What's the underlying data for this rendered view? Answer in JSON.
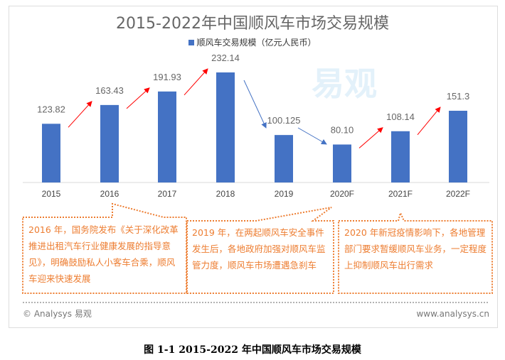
{
  "chart_data": {
    "type": "bar",
    "title": "2015-2022年中国顺风车市场交易规模",
    "legend": "顺风车交易规模（亿元人民币）",
    "categories": [
      "2015",
      "2016",
      "2017",
      "2018",
      "2019",
      "2020F",
      "2021F",
      "2022F"
    ],
    "values": [
      123.82,
      163.43,
      191.93,
      232.14,
      100.125,
      80.1,
      108.14,
      151.3
    ],
    "labels": [
      "123.82",
      "163.43",
      "191.93",
      "232.14",
      "100.125",
      "80.10",
      "108.14",
      "151.3"
    ],
    "ylim": [
      0,
      240
    ],
    "colors": {
      "bar": "#4472c4",
      "up_arrow": "#ff0000",
      "down_arrow": "#4472c4",
      "callout": "#ed7d31"
    }
  },
  "watermark": "易观",
  "callouts": [
    "2016 年，国务院发布《关于深化改革推进出租汽车行业健康发展的指导意见》，明确鼓励私人小客车合乘，顺风车迎来快速发展",
    "2019 年，在两起顺风车安全事件发生后，各地政府加强对顺风车监管力度，顺风车市场遭遇急刹车",
    "2020 年新冠疫情影响下，各地管理部门要求暂缓顺风车业务，一定程度上抑制顺风车出行需求"
  ],
  "footer": {
    "copyright": "© Analysys 易观",
    "site": "www.analysys.cn"
  },
  "caption": "图 1-1  2015-2022 年中国顺风车市场交易规模"
}
